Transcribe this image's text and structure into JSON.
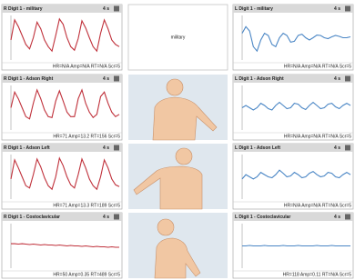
{
  "ylim": [
    0,
    1
  ],
  "panels": [
    {
      "left": {
        "title": "R Digit 1 - military",
        "duration": "4 s",
        "stats": "HR=N/A Amp=N/A RT=N/A Scr=5",
        "trace": [
          0.45,
          0.9,
          0.75,
          0.55,
          0.35,
          0.25,
          0.5,
          0.85,
          0.7,
          0.45,
          0.3,
          0.2,
          0.55,
          0.92,
          0.8,
          0.5,
          0.3,
          0.22,
          0.48,
          0.88,
          0.72,
          0.5,
          0.3,
          0.2,
          0.6,
          0.9,
          0.7,
          0.45,
          0.35,
          0.3
        ]
      },
      "middle": {
        "label": "military"
      },
      "right": {
        "title": "L Digit 1 - military",
        "duration": "4 s",
        "stats": "HR=N/A Amp=N/A RT=N/A Scr=5",
        "trace": [
          0.6,
          0.75,
          0.65,
          0.3,
          0.2,
          0.45,
          0.6,
          0.55,
          0.35,
          0.3,
          0.5,
          0.6,
          0.55,
          0.4,
          0.42,
          0.55,
          0.58,
          0.5,
          0.45,
          0.5,
          0.56,
          0.55,
          0.5,
          0.48,
          0.52,
          0.55,
          0.53,
          0.5,
          0.5,
          0.52
        ]
      }
    },
    {
      "left": {
        "title": "R Digit 1 - Adson Right",
        "duration": "4 s",
        "stats": "HR=71 Amp=13.2 RT=156 Scr=5",
        "trace": [
          0.5,
          0.85,
          0.7,
          0.5,
          0.3,
          0.25,
          0.6,
          0.9,
          0.7,
          0.45,
          0.3,
          0.28,
          0.65,
          0.88,
          0.65,
          0.4,
          0.3,
          0.3,
          0.7,
          0.9,
          0.6,
          0.4,
          0.28,
          0.35,
          0.75,
          0.85,
          0.6,
          0.4,
          0.3,
          0.35
        ]
      },
      "middle": {},
      "right": {
        "title": "L Digit 1 - Adson Right",
        "duration": "4 s",
        "stats": "HR=N/A Amp=N/A RT=N/A Scr=5",
        "trace": [
          0.5,
          0.55,
          0.5,
          0.45,
          0.5,
          0.6,
          0.55,
          0.48,
          0.45,
          0.55,
          0.62,
          0.55,
          0.48,
          0.5,
          0.6,
          0.58,
          0.5,
          0.46,
          0.55,
          0.62,
          0.55,
          0.48,
          0.5,
          0.58,
          0.6,
          0.52,
          0.48,
          0.55,
          0.6,
          0.55
        ]
      }
    },
    {
      "left": {
        "title": "R Digit 1 - Adson Left",
        "duration": "4 s",
        "stats": "HR=71 Amp=13.3 RT=189 Scr=5",
        "trace": [
          0.45,
          0.88,
          0.7,
          0.5,
          0.3,
          0.25,
          0.55,
          0.9,
          0.72,
          0.48,
          0.3,
          0.22,
          0.5,
          0.92,
          0.75,
          0.5,
          0.32,
          0.25,
          0.55,
          0.9,
          0.7,
          0.45,
          0.3,
          0.22,
          0.5,
          0.88,
          0.7,
          0.45,
          0.32,
          0.28
        ]
      },
      "middle": {},
      "right": {
        "title": "L Digit 1 - Adson Left",
        "duration": "4 s",
        "stats": "HR=N/A Amp=N/A RT=N/A Scr=5",
        "trace": [
          0.45,
          0.55,
          0.5,
          0.45,
          0.5,
          0.6,
          0.55,
          0.5,
          0.48,
          0.55,
          0.65,
          0.58,
          0.5,
          0.52,
          0.6,
          0.55,
          0.48,
          0.5,
          0.58,
          0.62,
          0.55,
          0.5,
          0.52,
          0.6,
          0.58,
          0.5,
          0.48,
          0.55,
          0.6,
          0.55
        ]
      }
    },
    {
      "left": {
        "title": "R Digit 1 - Costoclavicular",
        "duration": "4 s",
        "stats": "HR=50 Amp=0.35 RT=489 Scr=5",
        "trace": [
          0.55,
          0.55,
          0.54,
          0.55,
          0.54,
          0.53,
          0.54,
          0.53,
          0.52,
          0.53,
          0.52,
          0.52,
          0.51,
          0.52,
          0.51,
          0.5,
          0.51,
          0.5,
          0.5,
          0.49,
          0.5,
          0.49,
          0.48,
          0.49,
          0.48,
          0.48,
          0.47,
          0.48,
          0.47,
          0.47
        ]
      },
      "middle": {},
      "right": {
        "title": "L Digit 1 - Costoclavicular",
        "duration": "4 s",
        "stats": "HR=118 Amp=0.11 RT=N/A Scr=5",
        "trace": [
          0.5,
          0.5,
          0.51,
          0.5,
          0.5,
          0.5,
          0.51,
          0.5,
          0.5,
          0.5,
          0.5,
          0.51,
          0.5,
          0.5,
          0.5,
          0.51,
          0.5,
          0.5,
          0.5,
          0.5,
          0.51,
          0.5,
          0.5,
          0.5,
          0.51,
          0.5,
          0.5,
          0.5,
          0.5,
          0.5
        ]
      }
    }
  ]
}
